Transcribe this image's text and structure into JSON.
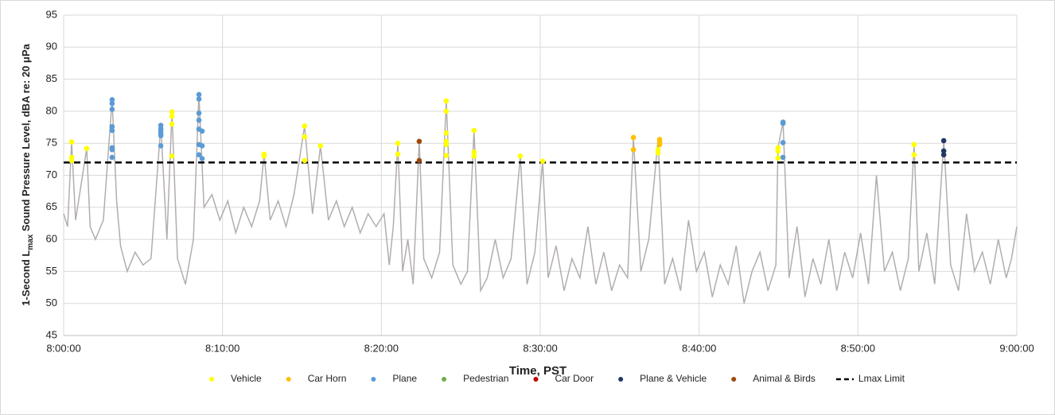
{
  "chart_data": {
    "type": "scatter",
    "xlabel": "Time, PST",
    "ylabel_parts": [
      "1-Second L",
      "max",
      " Sound Pressure Level, dBA re: 20 μPa"
    ],
    "xlim": [
      0,
      3600
    ],
    "ylim": [
      45,
      95
    ],
    "xticks": [
      {
        "value": 0,
        "label": "8:00:00"
      },
      {
        "value": 600,
        "label": "8:10:00"
      },
      {
        "value": 1200,
        "label": "8:20:00"
      },
      {
        "value": 1800,
        "label": "8:30:00"
      },
      {
        "value": 2400,
        "label": "8:40:00"
      },
      {
        "value": 3000,
        "label": "8:50:00"
      },
      {
        "value": 3600,
        "label": "9:00:00"
      }
    ],
    "yticks": [
      45,
      50,
      55,
      60,
      65,
      70,
      75,
      80,
      85,
      90,
      95
    ],
    "grid": true,
    "legend": "bottom",
    "line": {
      "color": "#b3adad",
      "x": [
        0,
        15,
        30,
        45,
        60,
        87,
        100,
        120,
        150,
        183,
        200,
        215,
        240,
        270,
        300,
        330,
        367,
        390,
        409,
        430,
        460,
        490,
        511,
        530,
        560,
        590,
        620,
        650,
        680,
        710,
        740,
        757,
        780,
        810,
        840,
        870,
        910,
        940,
        970,
        1000,
        1030,
        1060,
        1090,
        1120,
        1150,
        1180,
        1210,
        1230,
        1245,
        1262,
        1280,
        1300,
        1320,
        1343,
        1360,
        1390,
        1420,
        1445,
        1470,
        1500,
        1525,
        1550,
        1575,
        1600,
        1630,
        1660,
        1690,
        1725,
        1750,
        1780,
        1809,
        1830,
        1860,
        1890,
        1920,
        1950,
        1980,
        2010,
        2040,
        2070,
        2100,
        2130,
        2152,
        2180,
        2210,
        2245,
        2270,
        2300,
        2330,
        2360,
        2390,
        2420,
        2450,
        2480,
        2510,
        2540,
        2570,
        2600,
        2630,
        2660,
        2690,
        2698,
        2717,
        2740,
        2770,
        2800,
        2830,
        2860,
        2890,
        2920,
        2950,
        2980,
        3010,
        3040,
        3070,
        3100,
        3130,
        3160,
        3190,
        3212,
        3230,
        3260,
        3290,
        3324,
        3350,
        3380,
        3410,
        3440,
        3470,
        3500,
        3530,
        3560,
        3580,
        3600
      ],
      "values": [
        64,
        62,
        75.2,
        63,
        67,
        74.2,
        62,
        60,
        63,
        81.8,
        66,
        59,
        55,
        58,
        56,
        57,
        77.8,
        60,
        79.9,
        57,
        53,
        60,
        82.6,
        65,
        67,
        63,
        66,
        61,
        65,
        62,
        66,
        73.3,
        63,
        66,
        62,
        67,
        77.7,
        64,
        74.6,
        63,
        66,
        62,
        65,
        61,
        64,
        62,
        64,
        56,
        62,
        75,
        55,
        60,
        53,
        75.3,
        57,
        54,
        58,
        81.6,
        56,
        53,
        55,
        77,
        52,
        54,
        60,
        54,
        57,
        73,
        53,
        58,
        72.2,
        54,
        59,
        52,
        57,
        54,
        62,
        53,
        58,
        52,
        56,
        54,
        75.9,
        55,
        60,
        75.6,
        53,
        57,
        52,
        63,
        55,
        58,
        51,
        56,
        53,
        59,
        50,
        55,
        58,
        52,
        56,
        74.3,
        78.3,
        54,
        62,
        51,
        57,
        53,
        60,
        52,
        58,
        54,
        61,
        53,
        70,
        55,
        58,
        52,
        57,
        74.8,
        55,
        61,
        53,
        75.4,
        56,
        52,
        64,
        55,
        58,
        53,
        60,
        54,
        57,
        62
      ]
    },
    "series": [
      {
        "name": "Vehicle",
        "color": "#ffff00",
        "x": [
          30,
          30,
          30,
          87,
          409,
          409,
          409,
          409,
          757,
          757,
          910,
          910,
          910,
          970,
          1262,
          1262,
          1445,
          1445,
          1445,
          1445,
          1445,
          1445,
          1550,
          1550,
          1550,
          1725,
          1809,
          2245,
          2245,
          2698,
          2698,
          2698,
          3212,
          3212
        ],
        "values": [
          75.2,
          72.8,
          72.3,
          74.2,
          79.9,
          79.2,
          78,
          73,
          73.3,
          73,
          77.7,
          76,
          72.3,
          74.6,
          75,
          73.3,
          81.6,
          80,
          76.6,
          75.3,
          74.8,
          73.1,
          77,
          73.6,
          73,
          73,
          72.2,
          74,
          73.5,
          74.3,
          73.8,
          72.7,
          74.8,
          73.2
        ]
      },
      {
        "name": "Car Horn",
        "color": "#ffc000",
        "x": [
          2152,
          2152,
          2251,
          2251,
          2251
        ],
        "values": [
          75.9,
          74,
          75.6,
          75.2,
          74.8
        ]
      },
      {
        "name": "Plane",
        "color": "#5b9bd5",
        "x": [
          183,
          183,
          183,
          183,
          183,
          183,
          183,
          183,
          367,
          367,
          367,
          367,
          367,
          367,
          511,
          511,
          511,
          511,
          511,
          511,
          511,
          523,
          523,
          523,
          2717,
          2717,
          2717,
          2717
        ],
        "values": [
          81.8,
          81.2,
          80.3,
          77.6,
          77,
          74.3,
          74,
          72.8,
          77.8,
          77.3,
          76.9,
          76.5,
          76.2,
          74.6,
          82.6,
          81.9,
          79.7,
          78.6,
          77.2,
          74.8,
          73.2,
          76.9,
          74.6,
          72.6,
          78.3,
          78.1,
          75.1,
          72.8
        ]
      },
      {
        "name": "Pedestrian",
        "color": "#70ad47",
        "x": [],
        "values": []
      },
      {
        "name": "Car Door",
        "color": "#c00000",
        "x": [],
        "values": []
      },
      {
        "name": "Plane & Vehicle",
        "color": "#203864",
        "x": [
          3324,
          3324,
          3324
        ],
        "values": [
          75.4,
          73.8,
          73.2
        ]
      },
      {
        "name": "Animal & Birds",
        "color": "#9e480e",
        "x": [
          1343,
          1343
        ],
        "values": [
          75.3,
          72.3
        ]
      }
    ],
    "limit": {
      "name": "Lmax Limit",
      "value": 72,
      "color": "#000000"
    }
  }
}
